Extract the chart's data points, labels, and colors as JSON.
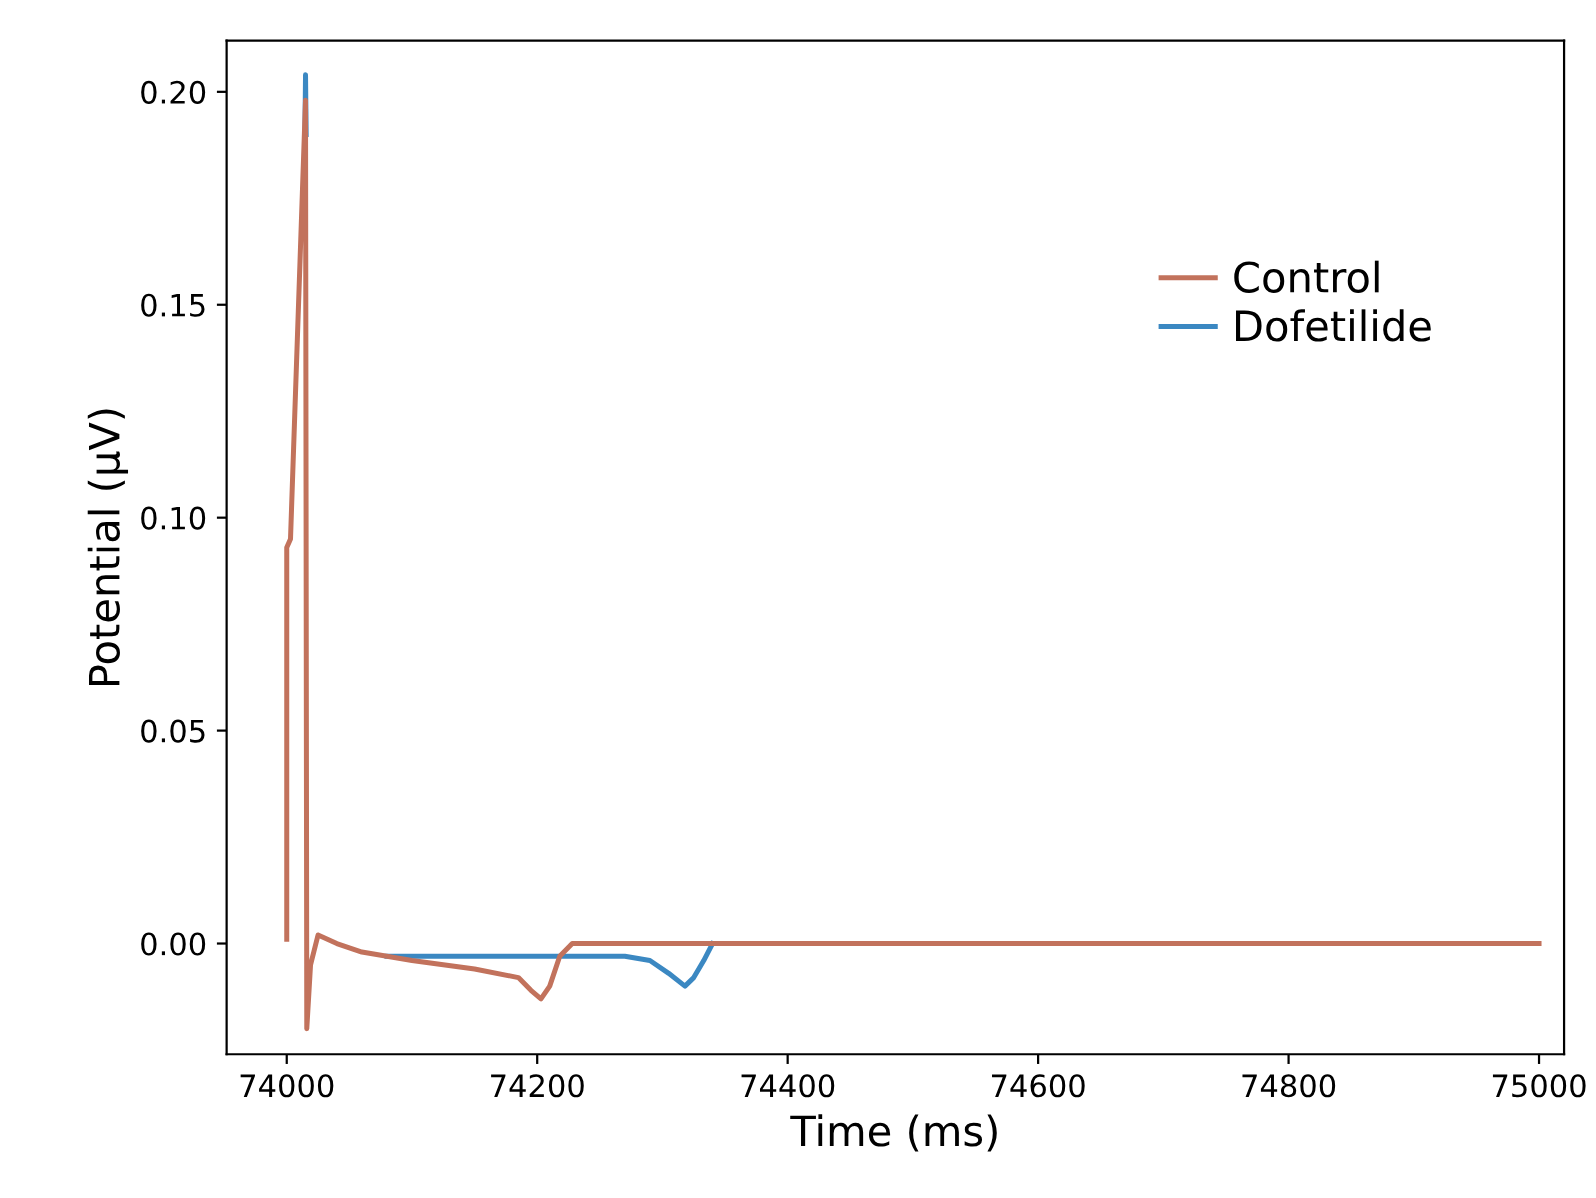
{
  "chart_data": {
    "type": "line",
    "xlabel": "Time (ms)",
    "ylabel": "Potential (µV)",
    "xlim": [
      73952,
      75020
    ],
    "ylim": [
      -0.026,
      0.212
    ],
    "xticks": [
      74000,
      74200,
      74400,
      74600,
      74800,
      75000
    ],
    "yticks": [
      {
        "value": 0,
        "label": "0.00"
      },
      0.05,
      {
        "value": 0.1,
        "label": "0.10"
      },
      0.15,
      {
        "value": 0.2,
        "label": "0.20"
      }
    ],
    "grid": false,
    "legend": "top right",
    "line_style": "solid",
    "marker": "none",
    "series": [
      {
        "name": "Dofetilide",
        "color": "#3b88c2",
        "x": [
          74014.5,
          74015,
          74015.5,
          74050,
          74080,
          74100,
          74150,
          74200,
          74250,
          74270,
          74290,
          74305,
          74318,
          74325,
          74333,
          74340
        ],
        "values": [
          0.19,
          0.204,
          0.19,
          null,
          -0.003,
          -0.003,
          -0.003,
          -0.003,
          -0.003,
          -0.003,
          -0.004,
          -0.007,
          -0.01,
          -0.008,
          -0.004,
          0.0
        ]
      },
      {
        "name": "Control",
        "color": "#c2725c",
        "x": [
          74000,
          74000,
          74003,
          74015,
          74016,
          74019,
          74025,
          74040,
          74060,
          74080,
          74100,
          74150,
          74185,
          74195,
          74203,
          74210,
          74218,
          74228,
          74240,
          74400,
          74600,
          74800,
          75000
        ],
        "values": [
          0.001,
          0.093,
          0.095,
          0.198,
          -0.02,
          -0.005,
          0.002,
          0.0,
          -0.002,
          -0.003,
          -0.004,
          -0.006,
          -0.008,
          -0.011,
          -0.013,
          -0.01,
          -0.003,
          0.0,
          0.0,
          0.0,
          0.0,
          0.0,
          0.0
        ]
      }
    ]
  }
}
